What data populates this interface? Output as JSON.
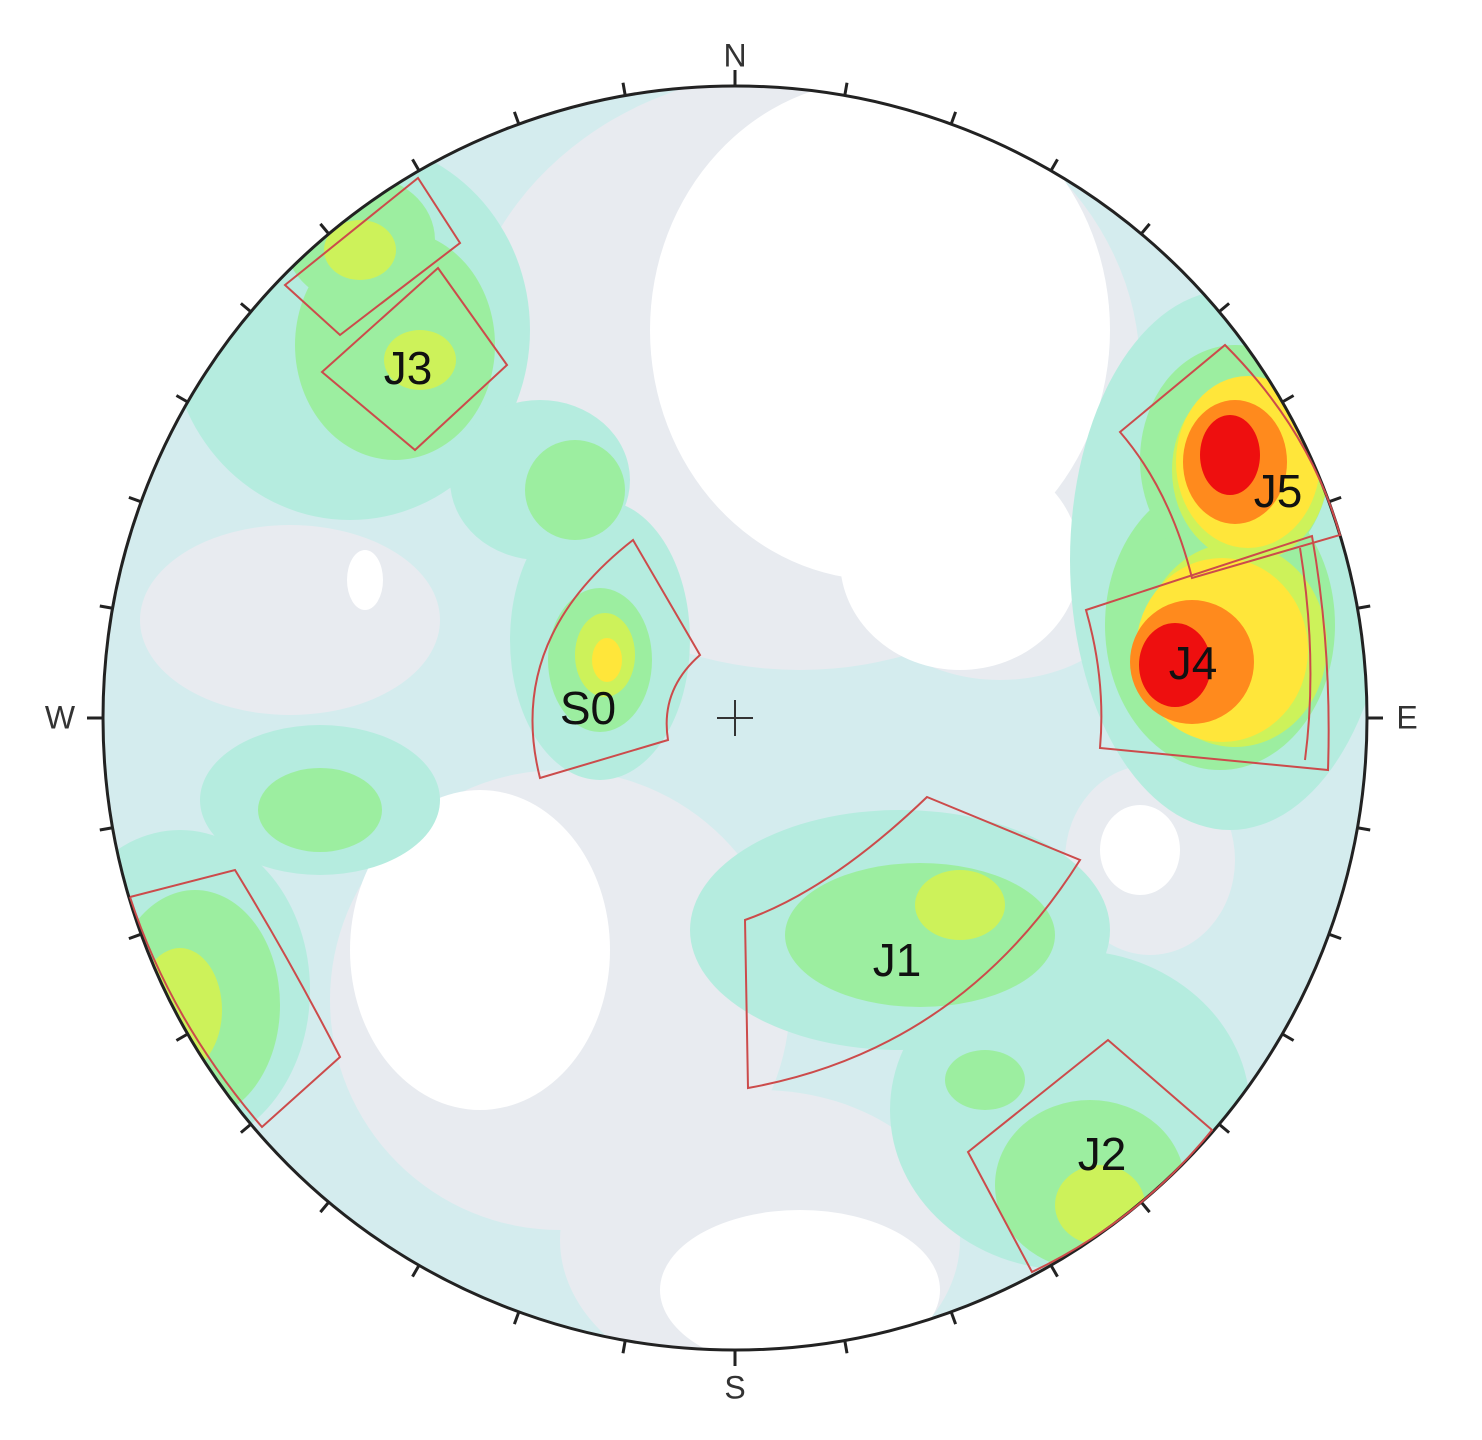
{
  "compass": {
    "north": "N",
    "south": "S",
    "west": "W",
    "east": "E"
  },
  "sets": [
    {
      "label": "J3"
    },
    {
      "label": "S0"
    },
    {
      "label": "J1"
    },
    {
      "label": "J2"
    },
    {
      "label": "J4"
    },
    {
      "label": "J5"
    }
  ]
}
